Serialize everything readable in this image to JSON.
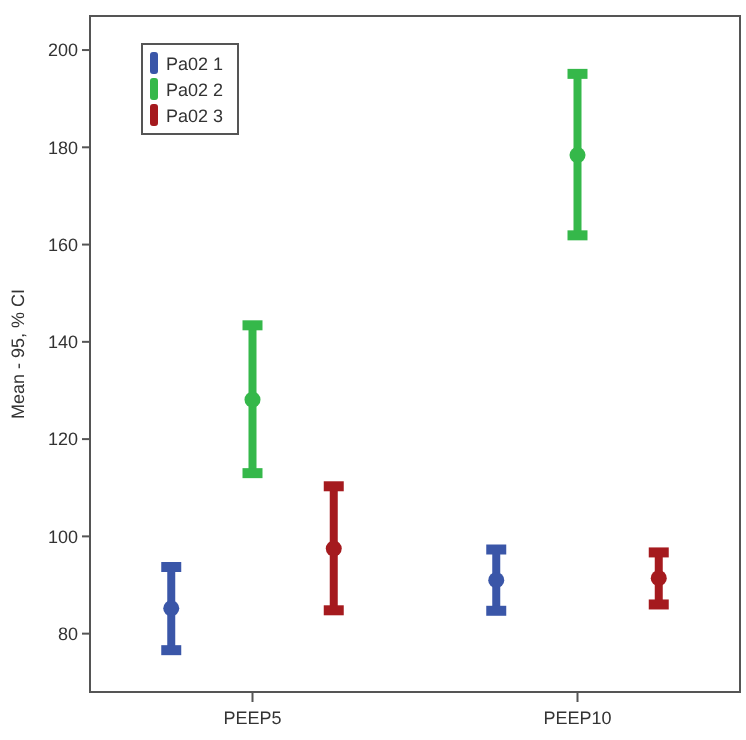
{
  "chart_data": {
    "type": "scatter",
    "ylabel": "Mean - 95, % CI",
    "categories": [
      "PEEP5",
      "PEEP10"
    ],
    "ylim": [
      68,
      207
    ],
    "yticks": [
      80,
      100,
      120,
      140,
      160,
      180,
      200
    ],
    "grid": false,
    "legend": "top left",
    "marker": "circle",
    "series": [
      {
        "name": "Pa02 1",
        "color": "#3a56a8",
        "values": [
          85.2,
          91
        ],
        "errors": [
          [
            76.6,
            93.7
          ],
          [
            84.7,
            97.3
          ]
        ]
      },
      {
        "name": "Pa02 2",
        "color": "#35b84a",
        "values": [
          128.1,
          178.4
        ],
        "errors": [
          [
            113,
            143.4
          ],
          [
            161.9,
            195.1
          ]
        ]
      },
      {
        "name": "Pa02 3",
        "color": "#a51a1e",
        "values": [
          97.5,
          91.4
        ],
        "errors": [
          [
            84.8,
            110.3
          ],
          [
            86,
            96.7
          ]
        ]
      }
    ]
  }
}
